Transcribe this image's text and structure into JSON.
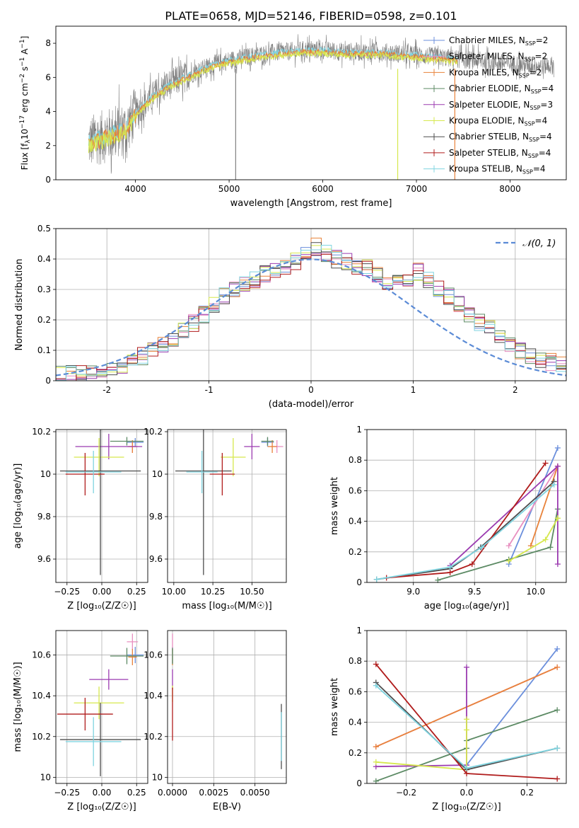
{
  "figure_title": "PLATE=0658, MJD=52146, FIBERID=0598, z=0.101",
  "colors": {
    "miles_chabrier": "#6b8fdc",
    "miles_salpeter": "#e88fc0",
    "miles_kroupa": "#e8823a",
    "elodie_chabrier": "#5c8a64",
    "elodie_salpeter": "#9b3bb0",
    "elodie_kroupa": "#d6e84e",
    "stelib_chabrier": "#4d4d4d",
    "stelib_salpeter": "#b01c1c",
    "stelib_kroupa": "#7fd4e0",
    "observed": "#808080",
    "grid": "#b0b0b0",
    "normal": "#5b8bd6"
  },
  "chart_data": [
    {
      "type": "line",
      "title": "PLATE=0658, MJD=52146, FIBERID=0598, z=0.101",
      "xlabel": "wavelength [Angstrom, rest frame]",
      "ylabel": "Flux [f_λ 10^-17 erg cm^-2 s^-1 A^-1]",
      "ylabel_parts": {
        "pre": "Flux [f",
        "sub1": "λ",
        "mid": "10",
        "sup1": "−17",
        "rest": " erg cm",
        "sup2": "−2",
        "rest2": " s",
        "sup3": "−1",
        "rest3": " A",
        "sup4": "−1",
        "end": "]"
      },
      "xlim": [
        3150,
        8600
      ],
      "ylim": [
        0,
        9
      ],
      "xticks": [
        4000,
        5000,
        6000,
        7000,
        8000
      ],
      "yticks": [
        0,
        2,
        4,
        6,
        8
      ],
      "legend_position": "right",
      "legend": [
        {
          "label": "Chabrier MILES, N",
          "sub": "SSP",
          "suffix": "=2",
          "color_key": "miles_chabrier",
          "marker": "+"
        },
        {
          "label": "Salpeter MILES, N",
          "sub": "SSP",
          "suffix": "=2",
          "color_key": "miles_salpeter",
          "marker": "+"
        },
        {
          "label": "Kroupa MILES, N",
          "sub": "SSP",
          "suffix": "=2",
          "color_key": "miles_kroupa",
          "marker": "+"
        },
        {
          "label": "Chabrier ELODIE, N",
          "sub": "SSP",
          "suffix": "=4",
          "color_key": "elodie_chabrier",
          "marker": "+"
        },
        {
          "label": "Salpeter ELODIE, N",
          "sub": "SSP",
          "suffix": "=3",
          "color_key": "elodie_salpeter",
          "marker": "+"
        },
        {
          "label": "Kroupa ELODIE, N",
          "sub": "SSP",
          "suffix": "=4",
          "color_key": "elodie_kroupa",
          "marker": "+"
        },
        {
          "label": "Chabrier STELIB, N",
          "sub": "SSP",
          "suffix": "=4",
          "color_key": "stelib_chabrier",
          "marker": "+"
        },
        {
          "label": "Salpeter STELIB, N",
          "sub": "SSP",
          "suffix": "=4",
          "color_key": "stelib_salpeter",
          "marker": "+"
        },
        {
          "label": "Kroupa STELIB, N",
          "sub": "SSP",
          "suffix": "=4",
          "color_key": "stelib_kroupa",
          "marker": "+"
        }
      ],
      "continuum": [
        [
          3500,
          2.2
        ],
        [
          3700,
          2.6
        ],
        [
          3900,
          3.0
        ],
        [
          4000,
          3.9
        ],
        [
          4200,
          5.0
        ],
        [
          4400,
          5.7
        ],
        [
          4600,
          6.2
        ],
        [
          4800,
          6.7
        ],
        [
          5000,
          7.0
        ],
        [
          5200,
          7.2
        ],
        [
          5400,
          7.4
        ],
        [
          5600,
          7.5
        ],
        [
          5800,
          7.6
        ],
        [
          6000,
          7.6
        ],
        [
          6200,
          7.5
        ],
        [
          6400,
          7.5
        ],
        [
          6600,
          7.5
        ],
        [
          6800,
          7.4
        ],
        [
          7000,
          7.3
        ],
        [
          7200,
          7.2
        ],
        [
          7400,
          7.1
        ],
        [
          7600,
          7.0
        ],
        [
          7800,
          6.9
        ],
        [
          8000,
          6.8
        ],
        [
          8200,
          6.7
        ],
        [
          8400,
          6.7
        ]
      ],
      "observed_end": 8470,
      "model_end": 7440,
      "drop_lines": [
        {
          "x": 5070,
          "color_key": "observed"
        },
        {
          "x": 6800,
          "color_key": "elodie_kroupa"
        },
        {
          "x": 7410,
          "color_key": "miles_kroupa"
        }
      ]
    },
    {
      "type": "histogram",
      "xlabel": "(data-model)/error",
      "ylabel": "Normed distribution",
      "xlim": [
        -2.5,
        2.5
      ],
      "ylim": [
        0,
        0.5
      ],
      "xticks": [
        -2,
        -1,
        0,
        1,
        2
      ],
      "yticks": [
        0,
        0.1,
        0.2,
        0.3,
        0.4,
        0.5
      ],
      "bin_width": 0.1,
      "bin_start": -2.5,
      "reference_values": [
        0.02,
        0.02,
        0.02,
        0.03,
        0.03,
        0.04,
        0.05,
        0.06,
        0.08,
        0.1,
        0.12,
        0.13,
        0.16,
        0.19,
        0.22,
        0.25,
        0.28,
        0.3,
        0.32,
        0.33,
        0.35,
        0.36,
        0.37,
        0.39,
        0.42,
        0.44,
        0.42,
        0.4,
        0.39,
        0.38,
        0.37,
        0.35,
        0.33,
        0.32,
        0.34,
        0.36,
        0.33,
        0.3,
        0.28,
        0.25,
        0.22,
        0.19,
        0.17,
        0.14,
        0.12,
        0.1,
        0.08,
        0.07,
        0.06,
        0.05
      ],
      "legend": {
        "label": "𝒩(0, 1)",
        "position": "top-right",
        "color_key": "normal",
        "dashed": true
      }
    },
    {
      "type": "scatter",
      "name": "age vs metallicity",
      "xlabel": "Z [log₁₀(Z/Z☉)]",
      "ylabel": "age  [log₁₀(age/yr)]",
      "xlim": [
        -0.33,
        0.33
      ],
      "ylim": [
        9.49,
        10.21
      ],
      "xticks": [
        -0.25,
        0,
        0.25
      ],
      "xtick_labels": [
        "−0.25",
        "0.00",
        "0.25"
      ],
      "yticks": [
        9.6,
        9.8,
        10.0,
        10.2
      ],
      "points": [
        {
          "c": "miles_chabrier",
          "x": 0.24,
          "xe": 0.06,
          "y": 10.15,
          "ye": 0.02
        },
        {
          "c": "miles_salpeter",
          "x": 0.22,
          "xe": 0.04,
          "y": 10.13,
          "ye": 0.03
        },
        {
          "c": "miles_kroupa",
          "x": 0.22,
          "xe": 0.03,
          "y": 10.13,
          "ye": 0.03
        },
        {
          "c": "elodie_chabrier",
          "x": 0.18,
          "xe": 0.12,
          "y": 10.155,
          "ye": 0.02
        },
        {
          "c": "elodie_salpeter",
          "x": 0.05,
          "xe": 0.24,
          "y": 10.13,
          "ye": 0.06
        },
        {
          "c": "elodie_kroupa",
          "x": -0.02,
          "xe": 0.18,
          "y": 10.08,
          "ye": 0.09
        },
        {
          "c": "stelib_chabrier",
          "x": -0.01,
          "xe": 0.29,
          "y": 10.015,
          "ye": 0.49
        },
        {
          "c": "stelib_salpeter",
          "x": -0.12,
          "xe": 0.14,
          "y": 10.0,
          "ye": 0.1
        },
        {
          "c": "stelib_kroupa",
          "x": -0.06,
          "xe": 0.2,
          "y": 10.01,
          "ye": 0.1
        }
      ]
    },
    {
      "type": "scatter",
      "name": "age vs mass",
      "xlabel": "mass [log₁₀(M/M☉)]",
      "ylabel": "",
      "xlim": [
        9.96,
        10.72
      ],
      "ylim": [
        9.49,
        10.21
      ],
      "xticks": [
        10.0,
        10.25,
        10.5
      ],
      "xtick_labels": [
        "10.00",
        "10.25",
        "10.50"
      ],
      "yticks": [
        9.6,
        9.8,
        10.0,
        10.2
      ],
      "points": [
        {
          "c": "miles_chabrier",
          "x": 10.6,
          "xe": 0.04,
          "y": 10.15,
          "ye": 0.02
        },
        {
          "c": "miles_salpeter",
          "x": 10.66,
          "xe": 0.04,
          "y": 10.13,
          "ye": 0.03
        },
        {
          "c": "miles_kroupa",
          "x": 10.63,
          "xe": 0.03,
          "y": 10.13,
          "ye": 0.03
        },
        {
          "c": "elodie_chabrier",
          "x": 10.6,
          "xe": 0.04,
          "y": 10.155,
          "ye": 0.02
        },
        {
          "c": "elodie_salpeter",
          "x": 10.5,
          "xe": 0.05,
          "y": 10.13,
          "ye": 0.06
        },
        {
          "c": "elodie_kroupa",
          "x": 10.38,
          "xe": 0.08,
          "y": 10.08,
          "ye": 0.09
        },
        {
          "c": "stelib_chabrier",
          "x": 10.19,
          "xe": 0.18,
          "y": 10.015,
          "ye": 0.49
        },
        {
          "c": "stelib_salpeter",
          "x": 10.31,
          "xe": 0.08,
          "y": 10.0,
          "ye": 0.1
        },
        {
          "c": "stelib_kroupa",
          "x": 10.18,
          "xe": 0.1,
          "y": 10.01,
          "ye": 0.1
        }
      ]
    },
    {
      "type": "line",
      "name": "mass weight vs age",
      "xlabel": "age  [log₁₀(age/yr)]",
      "ylabel": "mass weight",
      "xlim": [
        8.62,
        10.25
      ],
      "ylim": [
        0,
        1
      ],
      "xticks": [
        9.0,
        9.5,
        10.0
      ],
      "xtick_labels": [
        "9.0",
        "9.5",
        "10.0"
      ],
      "yticks": [
        0,
        0.2,
        0.4,
        0.6,
        0.8,
        1.0
      ],
      "series": [
        {
          "c": "miles_chabrier",
          "x": [
            9.78,
            10.18
          ],
          "y": [
            0.12,
            0.88
          ]
        },
        {
          "c": "miles_salpeter",
          "x": [
            9.78,
            10.18
          ],
          "y": [
            0.24,
            0.76
          ]
        },
        {
          "c": "miles_kroupa",
          "x": [
            9.96,
            10.18
          ],
          "y": [
            0.24,
            0.76
          ]
        },
        {
          "c": "elodie_chabrier",
          "x": [
            9.2,
            9.78,
            10.12,
            10.18
          ],
          "y": [
            0.015,
            0.15,
            0.23,
            0.48
          ]
        },
        {
          "c": "elodie_salpeter",
          "x": [
            9.3,
            10.18,
            10.18
          ],
          "y": [
            0.11,
            0.76,
            0.12
          ]
        },
        {
          "c": "elodie_kroupa",
          "x": [
            9.78,
            10.08,
            10.18,
            10.18
          ],
          "y": [
            0.14,
            0.28,
            0.42,
            0.42
          ]
        },
        {
          "c": "stelib_chabrier",
          "x": [
            8.7,
            9.3,
            9.55,
            10.15
          ],
          "y": [
            0.02,
            0.09,
            0.23,
            0.66
          ]
        },
        {
          "c": "stelib_salpeter",
          "x": [
            8.78,
            9.3,
            9.48,
            10.08
          ],
          "y": [
            0.03,
            0.065,
            0.12,
            0.78
          ]
        },
        {
          "c": "stelib_kroupa",
          "x": [
            8.7,
            9.3,
            9.56,
            10.15
          ],
          "y": [
            0.02,
            0.1,
            0.23,
            0.64
          ]
        }
      ]
    },
    {
      "type": "scatter",
      "name": "mass vs metallicity",
      "xlabel": "Z [log₁₀(Z/Z☉)]",
      "ylabel": "mass [log₁₀(M/M☉)]",
      "xlim": [
        -0.33,
        0.33
      ],
      "ylim": [
        9.97,
        10.72
      ],
      "xticks": [
        -0.25,
        0,
        0.25
      ],
      "xtick_labels": [
        "−0.25",
        "0.00",
        "0.25"
      ],
      "yticks": [
        10.0,
        10.2,
        10.4,
        10.6
      ],
      "points": [
        {
          "c": "miles_chabrier",
          "x": 0.24,
          "xe": 0.06,
          "y": 10.6,
          "ye": 0.04
        },
        {
          "c": "miles_salpeter",
          "x": 0.22,
          "xe": 0.04,
          "y": 10.665,
          "ye": 0.04
        },
        {
          "c": "miles_kroupa",
          "x": 0.22,
          "xe": 0.03,
          "y": 10.59,
          "ye": 0.04
        },
        {
          "c": "elodie_chabrier",
          "x": 0.18,
          "xe": 0.12,
          "y": 10.595,
          "ye": 0.04
        },
        {
          "c": "elodie_salpeter",
          "x": 0.05,
          "xe": 0.14,
          "y": 10.48,
          "ye": 0.05
        },
        {
          "c": "elodie_kroupa",
          "x": -0.02,
          "xe": 0.18,
          "y": 10.365,
          "ye": 0.08
        },
        {
          "c": "stelib_chabrier",
          "x": -0.01,
          "xe": 0.29,
          "y": 10.185,
          "ye": 0.18
        },
        {
          "c": "stelib_salpeter",
          "x": -0.12,
          "xe": 0.2,
          "y": 10.31,
          "ye": 0.08
        },
        {
          "c": "stelib_kroupa",
          "x": -0.06,
          "xe": 0.2,
          "y": 10.175,
          "ye": 0.12
        }
      ]
    },
    {
      "type": "scatter",
      "name": "mass vs extinction",
      "xlabel": "E(B-V)",
      "ylabel": "",
      "xlim": [
        -0.0003,
        0.0069
      ],
      "ylim": [
        9.97,
        10.72
      ],
      "xticks": [
        0,
        0.0025,
        0.005
      ],
      "xtick_labels": [
        "0.0000",
        "0.0025",
        "0.0050"
      ],
      "yticks": [
        10.0,
        10.2,
        10.4,
        10.6
      ],
      "points": [
        {
          "c": "miles_chabrier",
          "x": 0.0,
          "xe": 0.0,
          "y": 10.6,
          "ye": 0.04
        },
        {
          "c": "miles_salpeter",
          "x": 0.0,
          "xe": 0.0,
          "y": 10.665,
          "ye": 0.04
        },
        {
          "c": "miles_kroupa",
          "x": 0.0,
          "xe": 0.0,
          "y": 10.59,
          "ye": 0.04
        },
        {
          "c": "elodie_chabrier",
          "x": 0.0,
          "xe": 0.0,
          "y": 10.595,
          "ye": 0.04
        },
        {
          "c": "elodie_salpeter",
          "x": 0.0,
          "xe": 0.0,
          "y": 10.48,
          "ye": 0.05
        },
        {
          "c": "elodie_kroupa",
          "x": 0.0,
          "xe": 0.0,
          "y": 10.41,
          "ye": 0.04
        },
        {
          "c": "stelib_chabrier",
          "x": 0.0066,
          "xe": 0.0,
          "y": 10.2,
          "ye": 0.16
        },
        {
          "c": "stelib_salpeter",
          "x": 0.0,
          "xe": 0.0,
          "y": 10.31,
          "ye": 0.13
        },
        {
          "c": "stelib_kroupa",
          "x": 0.0066,
          "xe": 0.0,
          "y": 10.2,
          "ye": 0.12
        }
      ]
    },
    {
      "type": "line",
      "name": "mass weight vs metallicity",
      "xlabel": "Z [log₁₀(Z/Z☉)]",
      "ylabel": "mass weight",
      "xlim": [
        -0.33,
        0.33
      ],
      "ylim": [
        0,
        1
      ],
      "xticks": [
        -0.2,
        0,
        0.2
      ],
      "xtick_labels": [
        "−0.2",
        "0.0",
        "0.2"
      ],
      "yticks": [
        0,
        0.2,
        0.4,
        0.6,
        0.8,
        1.0
      ],
      "series": [
        {
          "c": "miles_chabrier",
          "x": [
            0.0,
            0.3
          ],
          "y": [
            0.12,
            0.88
          ]
        },
        {
          "c": "miles_salpeter",
          "x": [
            -0.3,
            0.3
          ],
          "y": [
            0.24,
            0.76
          ]
        },
        {
          "c": "miles_kroupa",
          "x": [
            -0.3,
            0.3
          ],
          "y": [
            0.24,
            0.76
          ]
        },
        {
          "c": "elodie_chabrier",
          "x": [
            -0.3,
            0.0,
            0.0,
            0.3
          ],
          "y": [
            0.015,
            0.23,
            0.28,
            0.48
          ]
        },
        {
          "c": "elodie_salpeter",
          "x": [
            -0.3,
            0.0,
            0.0
          ],
          "y": [
            0.11,
            0.12,
            0.76
          ]
        },
        {
          "c": "elodie_kroupa",
          "x": [
            -0.3,
            0.0,
            0.0,
            0.0
          ],
          "y": [
            0.14,
            0.09,
            0.42,
            0.35
          ]
        },
        {
          "c": "stelib_chabrier",
          "x": [
            -0.3,
            0.0,
            0.3
          ],
          "y": [
            0.66,
            0.09,
            0.23
          ]
        },
        {
          "c": "stelib_salpeter",
          "x": [
            -0.3,
            0.0,
            0.3
          ],
          "y": [
            0.78,
            0.065,
            0.03
          ]
        },
        {
          "c": "stelib_kroupa",
          "x": [
            -0.3,
            0.0,
            0.3
          ],
          "y": [
            0.64,
            0.1,
            0.23
          ]
        }
      ]
    }
  ]
}
